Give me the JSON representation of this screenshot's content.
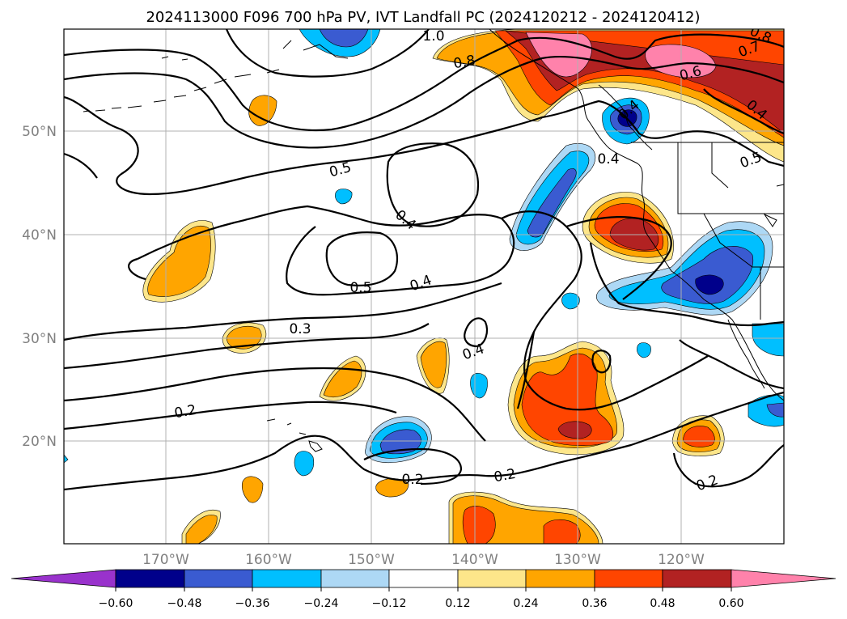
{
  "title": "2024113000 F096 700 hPa PV, IVT Landfall PC (2024120212 - 2024120412)",
  "axes": {
    "lon_ticks": [
      "170°W",
      "160°W",
      "150°W",
      "140°W",
      "130°W",
      "120°W"
    ],
    "lat_ticks": [
      "50°N",
      "40°N",
      "30°N",
      "20°N"
    ]
  },
  "colorbar": {
    "ticks": [
      "−0.60",
      "−0.48",
      "−0.36",
      "−0.24",
      "−0.12",
      "0.12",
      "0.24",
      "0.36",
      "0.48",
      "0.60"
    ],
    "colors": {
      "lt_neg_060": "#9932cc",
      "neg_060_048": "#00008b",
      "neg_048_036": "#3a5bd1",
      "neg_036_024": "#00bfff",
      "neg_024_012": "#add8f5",
      "neg_012_012": "#ffffff",
      "pos_012_024": "#fde68a",
      "pos_024_036": "#ffa500",
      "pos_036_048": "#ff4500",
      "pos_048_060": "#b22222",
      "gt_060": "#ff82ab"
    }
  },
  "contour_labels": [
    "1.0",
    "0.8",
    "0.6",
    "0.7",
    "0.8",
    "0.4",
    "0.5",
    "0.4",
    "0.5",
    "0.4",
    "0.4",
    "0.5",
    "0.4",
    "0.3",
    "0.4",
    "0.2",
    "0.2",
    "0.2",
    "0.2"
  ]
}
